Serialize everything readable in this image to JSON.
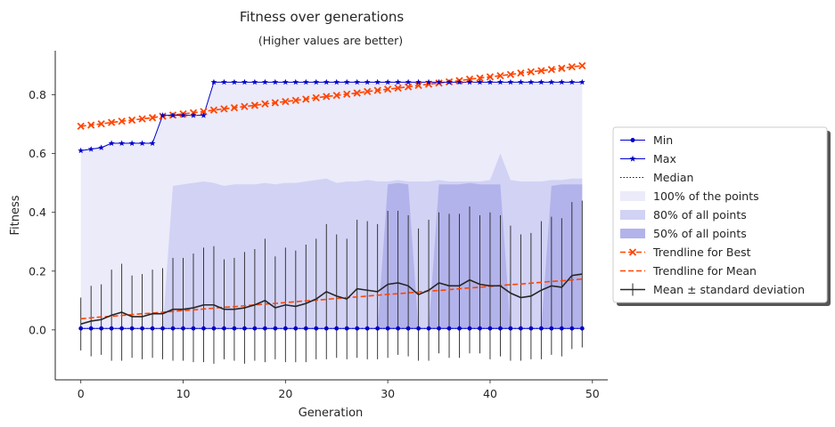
{
  "chart_data": {
    "type": "line",
    "title": "Fitness over generations",
    "subtitle": "(Higher values are better)",
    "xlabel": "Generation",
    "ylabel": "Fitness",
    "xlim": [
      -2.5,
      51.5
    ],
    "ylim": [
      -0.17,
      0.95
    ],
    "xticks": [
      0,
      10,
      20,
      30,
      40,
      50
    ],
    "yticks": [
      0.0,
      0.2,
      0.4,
      0.6,
      0.8
    ],
    "grid": false,
    "legend_position": "right, outside plot",
    "generations": [
      0,
      1,
      2,
      3,
      4,
      5,
      6,
      7,
      8,
      9,
      10,
      11,
      12,
      13,
      14,
      15,
      16,
      17,
      18,
      19,
      20,
      21,
      22,
      23,
      24,
      25,
      26,
      27,
      28,
      29,
      30,
      31,
      32,
      33,
      34,
      35,
      36,
      37,
      38,
      39,
      40,
      41,
      42,
      43,
      44,
      45,
      46,
      47,
      48,
      49
    ],
    "series": [
      {
        "name": "Min",
        "kind": "line",
        "color": "#0000cc",
        "marker": "dot",
        "values": [
          0.005,
          0.005,
          0.005,
          0.005,
          0.005,
          0.005,
          0.005,
          0.005,
          0.005,
          0.005,
          0.005,
          0.005,
          0.005,
          0.005,
          0.005,
          0.005,
          0.005,
          0.005,
          0.005,
          0.005,
          0.005,
          0.005,
          0.005,
          0.005,
          0.005,
          0.005,
          0.005,
          0.005,
          0.005,
          0.005,
          0.005,
          0.005,
          0.005,
          0.005,
          0.005,
          0.005,
          0.005,
          0.005,
          0.005,
          0.005,
          0.005,
          0.005,
          0.005,
          0.005,
          0.005,
          0.005,
          0.005,
          0.005,
          0.005,
          0.005
        ]
      },
      {
        "name": "Max",
        "kind": "line",
        "color": "#0000cc",
        "marker": "star",
        "values": [
          0.61,
          0.615,
          0.62,
          0.635,
          0.635,
          0.635,
          0.635,
          0.635,
          0.73,
          0.73,
          0.73,
          0.73,
          0.73,
          0.843,
          0.843,
          0.843,
          0.843,
          0.843,
          0.843,
          0.843,
          0.843,
          0.843,
          0.843,
          0.843,
          0.843,
          0.843,
          0.843,
          0.843,
          0.843,
          0.843,
          0.843,
          0.843,
          0.843,
          0.843,
          0.843,
          0.843,
          0.843,
          0.843,
          0.843,
          0.843,
          0.843,
          0.843,
          0.843,
          0.843,
          0.843,
          0.843,
          0.843,
          0.843,
          0.843,
          0.843
        ]
      },
      {
        "name": "Median",
        "kind": "line",
        "color": "#0000cc",
        "style": "dotted",
        "values": [
          0.005,
          0.005,
          0.005,
          0.005,
          0.005,
          0.005,
          0.005,
          0.005,
          0.005,
          0.005,
          0.005,
          0.005,
          0.005,
          0.005,
          0.005,
          0.005,
          0.005,
          0.005,
          0.005,
          0.005,
          0.005,
          0.005,
          0.005,
          0.005,
          0.005,
          0.005,
          0.005,
          0.005,
          0.005,
          0.005,
          0.005,
          0.005,
          0.005,
          0.005,
          0.005,
          0.005,
          0.005,
          0.005,
          0.005,
          0.005,
          0.005,
          0.005,
          0.005,
          0.005,
          0.005,
          0.005,
          0.005,
          0.005,
          0.005,
          0.005
        ]
      },
      {
        "name": "100% of the points",
        "kind": "band",
        "color": "#ebebfa",
        "lower": [
          0.005,
          0.005,
          0.005,
          0.005,
          0.005,
          0.005,
          0.005,
          0.005,
          0.005,
          0.005,
          0.005,
          0.005,
          0.005,
          0.005,
          0.005,
          0.005,
          0.005,
          0.005,
          0.005,
          0.005,
          0.005,
          0.005,
          0.005,
          0.005,
          0.005,
          0.005,
          0.005,
          0.005,
          0.005,
          0.005,
          0.005,
          0.005,
          0.005,
          0.005,
          0.005,
          0.005,
          0.005,
          0.005,
          0.005,
          0.005,
          0.005,
          0.005,
          0.005,
          0.005,
          0.005,
          0.005,
          0.005,
          0.005,
          0.005,
          0.005
        ],
        "upper": [
          0.61,
          0.615,
          0.62,
          0.635,
          0.635,
          0.635,
          0.635,
          0.635,
          0.73,
          0.73,
          0.73,
          0.73,
          0.73,
          0.843,
          0.843,
          0.843,
          0.843,
          0.843,
          0.843,
          0.843,
          0.843,
          0.843,
          0.843,
          0.843,
          0.843,
          0.843,
          0.843,
          0.843,
          0.843,
          0.843,
          0.843,
          0.843,
          0.843,
          0.843,
          0.843,
          0.843,
          0.843,
          0.843,
          0.843,
          0.843,
          0.843,
          0.843,
          0.843,
          0.843,
          0.843,
          0.843,
          0.843,
          0.843,
          0.843,
          0.843
        ]
      },
      {
        "name": "80% of all points",
        "kind": "band",
        "color": "#d2d2f5",
        "lower": [
          0.005,
          0.005,
          0.005,
          0.005,
          0.005,
          0.005,
          0.005,
          0.005,
          0.005,
          0.005,
          0.005,
          0.005,
          0.005,
          0.005,
          0.005,
          0.005,
          0.005,
          0.005,
          0.005,
          0.005,
          0.005,
          0.005,
          0.005,
          0.005,
          0.005,
          0.005,
          0.005,
          0.005,
          0.005,
          0.005,
          0.005,
          0.005,
          0.005,
          0.005,
          0.005,
          0.005,
          0.005,
          0.005,
          0.005,
          0.005,
          0.005,
          0.005,
          0.005,
          0.005,
          0.005,
          0.005,
          0.005,
          0.005,
          0.005,
          0.005
        ],
        "upper": [
          0.005,
          0.005,
          0.005,
          0.005,
          0.005,
          0.005,
          0.005,
          0.005,
          0.005,
          0.49,
          0.495,
          0.5,
          0.505,
          0.5,
          0.49,
          0.495,
          0.495,
          0.495,
          0.5,
          0.495,
          0.5,
          0.5,
          0.505,
          0.51,
          0.515,
          0.5,
          0.505,
          0.505,
          0.51,
          0.505,
          0.505,
          0.51,
          0.505,
          0.505,
          0.505,
          0.51,
          0.505,
          0.505,
          0.505,
          0.505,
          0.51,
          0.6,
          0.51,
          0.505,
          0.505,
          0.505,
          0.51,
          0.51,
          0.515,
          0.515
        ]
      },
      {
        "name": "50% of all points",
        "kind": "band",
        "color": "#b3b3eb",
        "lower": [
          0.005,
          0.005,
          0.005,
          0.005,
          0.005,
          0.005,
          0.005,
          0.005,
          0.005,
          0.005,
          0.005,
          0.005,
          0.005,
          0.005,
          0.005,
          0.005,
          0.005,
          0.005,
          0.005,
          0.005,
          0.005,
          0.005,
          0.005,
          0.005,
          0.005,
          0.005,
          0.005,
          0.005,
          0.005,
          0.005,
          0.005,
          0.005,
          0.005,
          0.005,
          0.005,
          0.005,
          0.005,
          0.005,
          0.005,
          0.005,
          0.005,
          0.005,
          0.005,
          0.005,
          0.005,
          0.005,
          0.005,
          0.005,
          0.005,
          0.005
        ],
        "upper": [
          0.005,
          0.005,
          0.005,
          0.005,
          0.005,
          0.005,
          0.005,
          0.005,
          0.005,
          0.005,
          0.005,
          0.005,
          0.005,
          0.005,
          0.005,
          0.005,
          0.005,
          0.005,
          0.005,
          0.005,
          0.005,
          0.005,
          0.005,
          0.005,
          0.005,
          0.005,
          0.005,
          0.005,
          0.005,
          0.005,
          0.495,
          0.5,
          0.495,
          0.005,
          0.005,
          0.495,
          0.495,
          0.495,
          0.5,
          0.495,
          0.495,
          0.495,
          0.005,
          0.005,
          0.005,
          0.005,
          0.49,
          0.495,
          0.495,
          0.495
        ]
      },
      {
        "name": "Trendline for Best",
        "kind": "line",
        "color": "#ff4500",
        "style": "dashed",
        "marker": "x",
        "values": [
          0.693,
          0.697,
          0.701,
          0.706,
          0.71,
          0.714,
          0.718,
          0.722,
          0.727,
          0.731,
          0.735,
          0.739,
          0.743,
          0.748,
          0.752,
          0.756,
          0.76,
          0.764,
          0.769,
          0.773,
          0.777,
          0.781,
          0.785,
          0.79,
          0.794,
          0.798,
          0.802,
          0.806,
          0.811,
          0.815,
          0.819,
          0.823,
          0.827,
          0.832,
          0.836,
          0.84,
          0.844,
          0.848,
          0.853,
          0.857,
          0.861,
          0.865,
          0.869,
          0.874,
          0.878,
          0.882,
          0.886,
          0.89,
          0.895,
          0.899
        ]
      },
      {
        "name": "Trendline for Mean",
        "kind": "line",
        "color": "#ff4500",
        "style": "dashed",
        "values": [
          0.038,
          0.041,
          0.044,
          0.046,
          0.049,
          0.052,
          0.055,
          0.057,
          0.06,
          0.063,
          0.066,
          0.068,
          0.071,
          0.074,
          0.077,
          0.079,
          0.082,
          0.085,
          0.088,
          0.09,
          0.093,
          0.096,
          0.099,
          0.101,
          0.104,
          0.107,
          0.11,
          0.112,
          0.115,
          0.118,
          0.121,
          0.123,
          0.126,
          0.129,
          0.132,
          0.134,
          0.137,
          0.14,
          0.143,
          0.145,
          0.148,
          0.151,
          0.154,
          0.156,
          0.159,
          0.162,
          0.165,
          0.167,
          0.17,
          0.173
        ]
      },
      {
        "name": "Mean ± standard deviation",
        "kind": "errorbar",
        "color": "#262626",
        "values": [
          0.02,
          0.03,
          0.035,
          0.05,
          0.06,
          0.045,
          0.045,
          0.055,
          0.055,
          0.07,
          0.07,
          0.075,
          0.085,
          0.085,
          0.07,
          0.07,
          0.075,
          0.085,
          0.1,
          0.075,
          0.085,
          0.08,
          0.09,
          0.105,
          0.13,
          0.115,
          0.105,
          0.14,
          0.135,
          0.13,
          0.155,
          0.16,
          0.15,
          0.12,
          0.135,
          0.16,
          0.15,
          0.15,
          0.17,
          0.155,
          0.15,
          0.15,
          0.125,
          0.11,
          0.115,
          0.135,
          0.15,
          0.145,
          0.185,
          0.19
        ],
        "upper": [
          0.11,
          0.15,
          0.155,
          0.205,
          0.225,
          0.185,
          0.19,
          0.205,
          0.21,
          0.245,
          0.245,
          0.26,
          0.28,
          0.285,
          0.24,
          0.245,
          0.265,
          0.275,
          0.31,
          0.25,
          0.28,
          0.27,
          0.29,
          0.31,
          0.36,
          0.325,
          0.31,
          0.375,
          0.37,
          0.36,
          0.405,
          0.405,
          0.39,
          0.345,
          0.375,
          0.4,
          0.395,
          0.395,
          0.42,
          0.39,
          0.4,
          0.39,
          0.355,
          0.325,
          0.33,
          0.37,
          0.385,
          0.38,
          0.435,
          0.44
        ],
        "lower": [
          -0.07,
          -0.09,
          -0.085,
          -0.105,
          -0.105,
          -0.095,
          -0.1,
          -0.095,
          -0.1,
          -0.105,
          -0.105,
          -0.11,
          -0.11,
          -0.115,
          -0.1,
          -0.105,
          -0.115,
          -0.105,
          -0.11,
          -0.1,
          -0.11,
          -0.11,
          -0.11,
          -0.1,
          -0.1,
          -0.095,
          -0.1,
          -0.095,
          -0.1,
          -0.1,
          -0.095,
          -0.085,
          -0.09,
          -0.105,
          -0.105,
          -0.08,
          -0.095,
          -0.095,
          -0.08,
          -0.08,
          -0.1,
          -0.09,
          -0.105,
          -0.105,
          -0.1,
          -0.1,
          -0.085,
          -0.09,
          -0.065,
          -0.06
        ]
      }
    ],
    "legend": [
      {
        "label": "Min",
        "glyph": "line-dot",
        "color": "#0000cc"
      },
      {
        "label": "Max",
        "glyph": "line-star",
        "color": "#0000cc"
      },
      {
        "label": "Median",
        "glyph": "dotted",
        "color": "#0000cc"
      },
      {
        "label": "100% of the points",
        "glyph": "patch",
        "color": "#ebebfa"
      },
      {
        "label": "80% of all points",
        "glyph": "patch",
        "color": "#d2d2f5"
      },
      {
        "label": "50% of all points",
        "glyph": "patch",
        "color": "#b3b3eb"
      },
      {
        "label": "Trendline for Best",
        "glyph": "dashed-x",
        "color": "#ff4500"
      },
      {
        "label": "Trendline for Mean",
        "glyph": "dashed",
        "color": "#ff4500"
      },
      {
        "label": "Mean ± standard deviation",
        "glyph": "errorbar",
        "color": "#262626"
      }
    ]
  }
}
